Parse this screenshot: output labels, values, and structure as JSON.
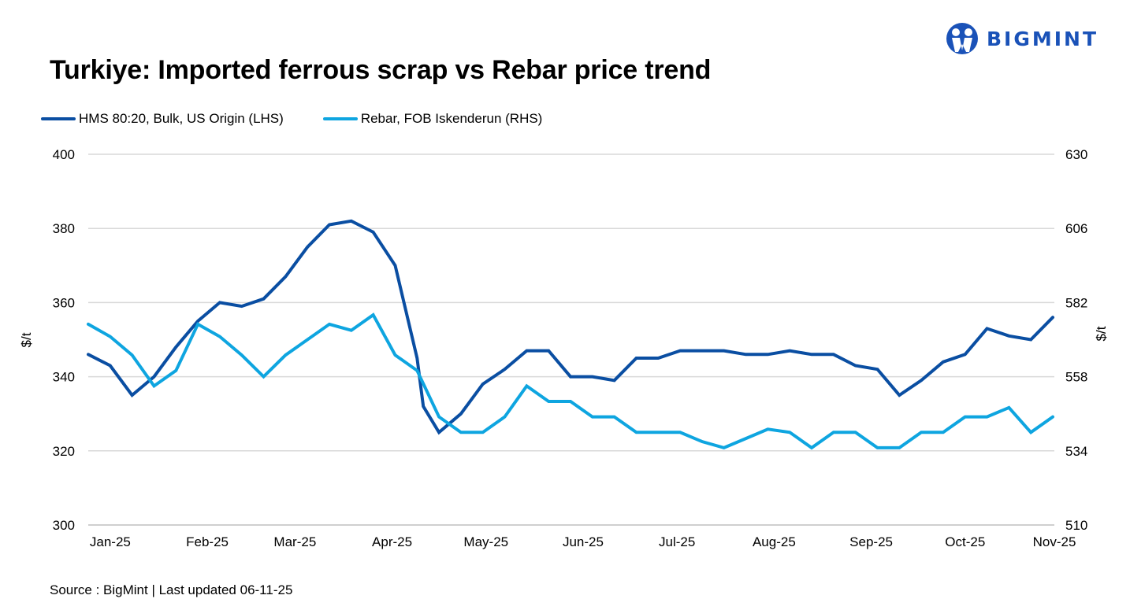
{
  "title": "Turkiye: Imported ferrous scrap vs Rebar price trend",
  "logo": {
    "text": "BIGMINT",
    "color": "#1a52b8"
  },
  "source": "Source : BigMint | Last updated 06-11-25",
  "chart_data": {
    "type": "line",
    "title": "Turkiye: Imported ferrous scrap vs Rebar price trend",
    "ylabel": "$/t",
    "y2label": "$/t",
    "ylim": [
      300,
      400
    ],
    "y2lim": [
      510,
      630
    ],
    "yticks": [
      "300",
      "320",
      "340",
      "360",
      "380",
      "400"
    ],
    "y2ticks": [
      "510",
      "534",
      "558",
      "582",
      "606",
      "630"
    ],
    "xticks": [
      "Jan-25",
      "Feb-25",
      "Mar-25",
      "Apr-25",
      "May-25",
      "Jun-25",
      "Jul-25",
      "Aug-25",
      "Sep-25",
      "Oct-25",
      "Nov-25"
    ],
    "grid": "horizontal",
    "legend_position": "top-left",
    "series": [
      {
        "name": "HMS 80:20, Bulk, US Origin (LHS)",
        "axis": "left",
        "color": "#0a4ea2",
        "x": [
          "2024-12-28",
          "2025-01-04",
          "2025-01-11",
          "2025-01-18",
          "2025-01-25",
          "2025-02-01",
          "2025-02-08",
          "2025-02-15",
          "2025-02-22",
          "2025-03-01",
          "2025-03-08",
          "2025-03-15",
          "2025-03-22",
          "2025-03-29",
          "2025-04-05",
          "2025-04-12",
          "2025-04-14",
          "2025-04-19",
          "2025-04-26",
          "2025-05-03",
          "2025-05-10",
          "2025-05-17",
          "2025-05-24",
          "2025-05-31",
          "2025-06-07",
          "2025-06-14",
          "2025-06-21",
          "2025-06-28",
          "2025-07-05",
          "2025-07-12",
          "2025-07-19",
          "2025-07-26",
          "2025-08-02",
          "2025-08-09",
          "2025-08-16",
          "2025-08-23",
          "2025-08-30",
          "2025-09-06",
          "2025-09-13",
          "2025-09-20",
          "2025-09-27",
          "2025-10-04",
          "2025-10-11",
          "2025-10-18",
          "2025-10-25",
          "2025-11-01"
        ],
        "values": [
          346,
          343,
          335,
          340,
          348,
          355,
          360,
          359,
          361,
          367,
          375,
          381,
          382,
          379,
          370,
          345,
          332,
          325,
          330,
          338,
          342,
          347,
          347,
          340,
          340,
          339,
          345,
          345,
          347,
          347,
          347,
          346,
          346,
          347,
          346,
          346,
          343,
          342,
          335,
          339,
          344,
          346,
          353,
          351,
          350,
          356
        ]
      },
      {
        "name": "Rebar, FOB Iskenderun (RHS)",
        "axis": "right",
        "color": "#0ea5e0",
        "x": [
          "2024-12-28",
          "2025-01-04",
          "2025-01-11",
          "2025-01-18",
          "2025-01-25",
          "2025-02-01",
          "2025-02-08",
          "2025-02-15",
          "2025-02-22",
          "2025-03-01",
          "2025-03-08",
          "2025-03-15",
          "2025-03-22",
          "2025-03-29",
          "2025-04-05",
          "2025-04-12",
          "2025-04-19",
          "2025-04-26",
          "2025-05-03",
          "2025-05-10",
          "2025-05-17",
          "2025-05-24",
          "2025-05-31",
          "2025-06-07",
          "2025-06-14",
          "2025-06-21",
          "2025-06-28",
          "2025-07-05",
          "2025-07-12",
          "2025-07-19",
          "2025-07-26",
          "2025-08-02",
          "2025-08-09",
          "2025-08-16",
          "2025-08-23",
          "2025-08-30",
          "2025-09-06",
          "2025-09-13",
          "2025-09-20",
          "2025-09-27",
          "2025-10-04",
          "2025-10-11",
          "2025-10-18",
          "2025-10-25",
          "2025-11-01"
        ],
        "values": [
          575,
          571,
          565,
          555,
          560,
          575,
          571,
          565,
          558,
          565,
          570,
          575,
          573,
          578,
          565,
          560,
          545,
          540,
          540,
          545,
          555,
          550,
          550,
          545,
          545,
          540,
          540,
          540,
          537,
          535,
          538,
          541,
          540,
          535,
          540,
          540,
          535,
          535,
          540,
          540,
          545,
          545,
          548,
          540,
          545
        ]
      }
    ]
  }
}
